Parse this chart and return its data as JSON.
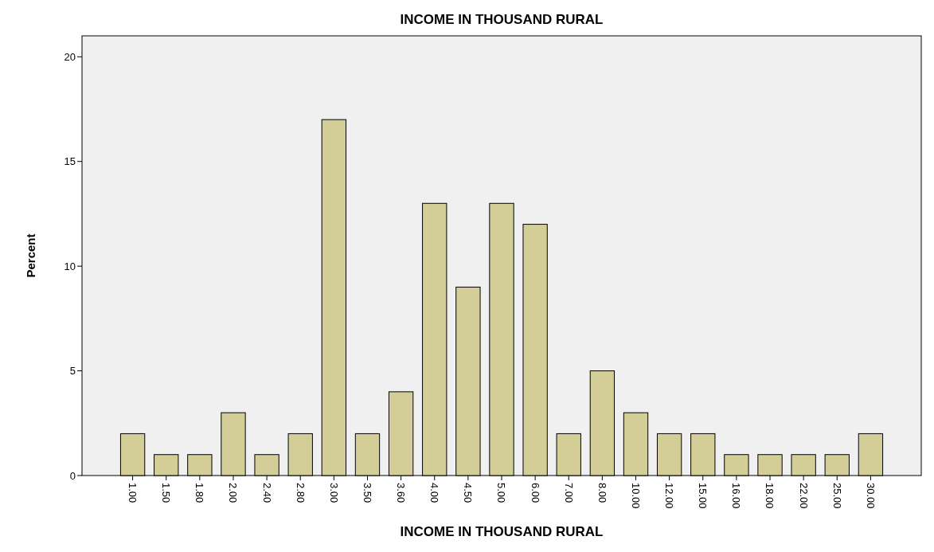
{
  "chart_data": {
    "type": "bar",
    "title": "INCOME IN THOUSAND RURAL",
    "xlabel": "INCOME IN THOUSAND RURAL",
    "ylabel": "Percent",
    "categories": [
      "1.00",
      "1.50",
      "1.80",
      "2.00",
      "2.40",
      "2.80",
      "3.00",
      "3.50",
      "3.60",
      "4.00",
      "4.50",
      "5.00",
      "6.00",
      "7.00",
      "8.00",
      "10.00",
      "12.00",
      "15.00",
      "16.00",
      "18.00",
      "22.00",
      "25.00",
      "30.00"
    ],
    "values": [
      2,
      1,
      1,
      3,
      1,
      2,
      17,
      2,
      4,
      13,
      9,
      13,
      12,
      2,
      5,
      3,
      2,
      2,
      1,
      1,
      1,
      1,
      2
    ],
    "color": "#d3ce97",
    "ylim": [
      0,
      21
    ],
    "yticks": [
      0,
      5,
      10,
      15,
      20
    ],
    "grid": false
  }
}
